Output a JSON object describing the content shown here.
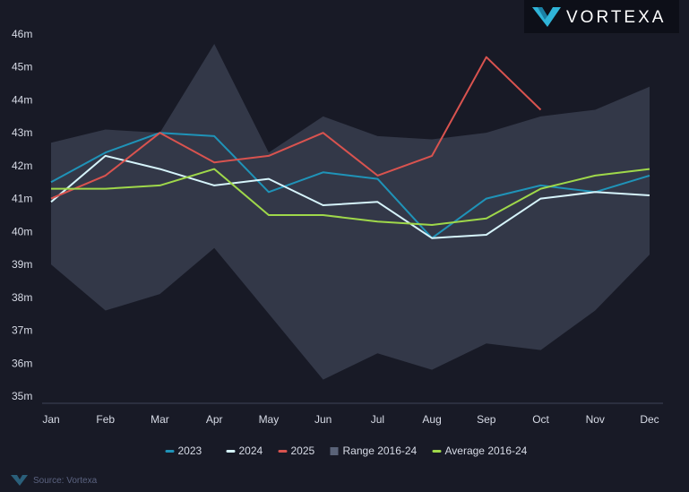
{
  "brand": {
    "name": "VORTEXA"
  },
  "source": "Source: Vortexa",
  "colors": {
    "background": "#181a26",
    "range_fill": "#333848",
    "s2023": "#1f93b8",
    "s2024": "#d6f4fb",
    "s2025": "#d9534f",
    "average": "#9fd84a",
    "logo_mark": "#2fb4d8"
  },
  "chart_data": {
    "type": "line",
    "title": "",
    "xlabel": "",
    "ylabel": "",
    "categories": [
      "Jan",
      "Feb",
      "Mar",
      "Apr",
      "May",
      "Jun",
      "Jul",
      "Aug",
      "Sep",
      "Oct",
      "Nov",
      "Dec"
    ],
    "ylim": [
      35,
      46
    ],
    "yticks": [
      35,
      36,
      37,
      38,
      39,
      40,
      41,
      42,
      43,
      44,
      45,
      46
    ],
    "ytick_suffix": "m",
    "grid": false,
    "legend_position": "bottom",
    "range": {
      "name": "Range 2016-24",
      "upper": [
        42.7,
        43.1,
        43.0,
        45.7,
        42.4,
        43.5,
        42.9,
        42.8,
        43.0,
        43.5,
        43.7,
        44.4
      ],
      "lower": [
        39.0,
        37.6,
        38.1,
        39.5,
        37.5,
        35.5,
        36.3,
        35.8,
        36.6,
        36.4,
        37.6,
        39.3
      ]
    },
    "series": [
      {
        "name": "2023",
        "color_key": "s2023",
        "values": [
          41.5,
          42.4,
          43.0,
          42.9,
          41.2,
          41.8,
          41.6,
          39.8,
          41.0,
          41.4,
          41.2,
          41.7
        ]
      },
      {
        "name": "2024",
        "color_key": "s2024",
        "values": [
          40.9,
          42.3,
          41.9,
          41.4,
          41.6,
          40.8,
          40.9,
          39.8,
          39.9,
          41.0,
          41.2,
          41.1
        ]
      },
      {
        "name": "2025",
        "color_key": "s2025",
        "values": [
          41.0,
          41.7,
          43.0,
          42.1,
          42.3,
          43.0,
          41.7,
          42.3,
          45.3,
          43.7,
          null,
          null
        ]
      },
      {
        "name": "Average 2016-24",
        "color_key": "average",
        "values": [
          41.3,
          41.3,
          41.4,
          41.9,
          40.5,
          40.5,
          40.3,
          40.2,
          40.4,
          41.3,
          41.7,
          41.9
        ]
      }
    ],
    "legend": [
      {
        "name": "2023",
        "kind": "line",
        "color_key": "s2023"
      },
      {
        "name": "2024",
        "kind": "line",
        "color_key": "s2024"
      },
      {
        "name": "2025",
        "kind": "line",
        "color_key": "s2025"
      },
      {
        "name": "Range 2016-24",
        "kind": "area",
        "color_key": "range_legend"
      },
      {
        "name": "Average 2016-24",
        "kind": "line",
        "color_key": "average"
      }
    ]
  }
}
